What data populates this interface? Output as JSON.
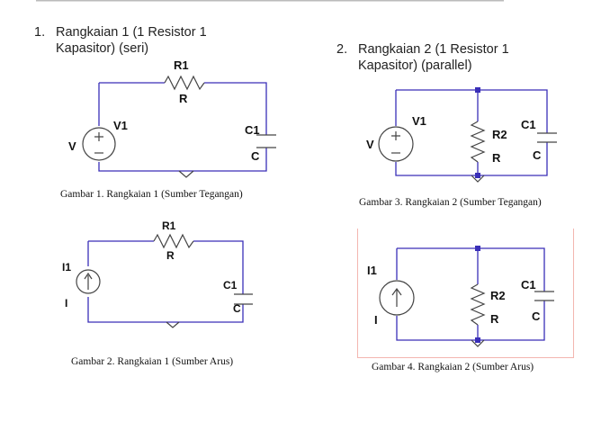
{
  "heading1": {
    "number": "1.",
    "line1": "Rangkaian 1 (1 Resistor 1",
    "line2": "Kapasitor) (seri)"
  },
  "heading2": {
    "number": "2.",
    "line1": "Rangkaian 2 (1 Resistor 1",
    "line2": "Kapasitor) (parallel)"
  },
  "captions": {
    "fig1": "Gambar 1. Rangkaian 1 (Sumber Tegangan)",
    "fig2": "Gambar 2. Rangkaian 1 (Sumber Arus)",
    "fig3": "Gambar 3. Rangkaian 2 (Sumber Tegangan)",
    "fig4": "Gambar 4. Rangkaian 2 (Sumber Arus)"
  },
  "circuit1": {
    "resistor_name": "R1",
    "resistor_value": "R",
    "source_name": "V1",
    "source_value": "V",
    "cap_name": "C1",
    "cap_value": "C"
  },
  "circuit2": {
    "resistor_name": "R1",
    "resistor_value": "R",
    "source_name": "I1",
    "source_value": "I",
    "cap_name": "C1",
    "cap_value": "C"
  },
  "circuit3": {
    "resistor_name": "R2",
    "resistor_value": "R",
    "source_name": "V1",
    "source_value": "V",
    "cap_name": "C1",
    "cap_value": "C"
  },
  "circuit4": {
    "resistor_name": "R2",
    "resistor_value": "R",
    "source_name": "I1",
    "source_value": "I",
    "cap_name": "C1",
    "cap_value": "C"
  },
  "colors": {
    "wire": "#3a2fb8",
    "node": "#3a2fb8",
    "border": "#f3b6b0"
  }
}
